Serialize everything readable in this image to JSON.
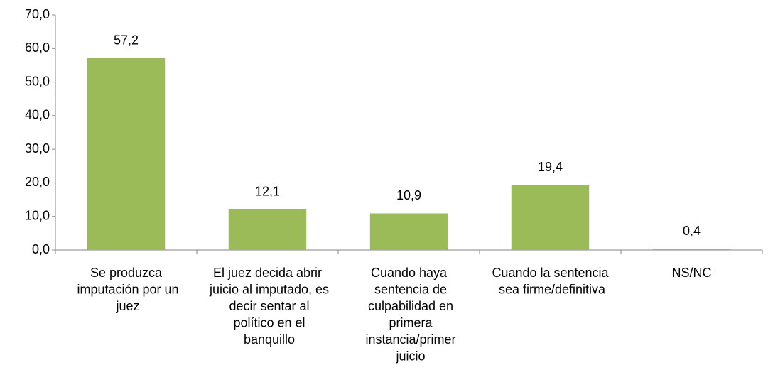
{
  "chart_data": {
    "type": "bar",
    "categories": [
      "Se produzca imputación por un juez",
      "El juez decida abrir juicio al imputado, es decir sentar al político en el banquillo",
      "Cuando haya sentencia de culpabilidad en primera instancia/primer juicio",
      "Cuando la sentencia sea firme/definitiva",
      "NS/NC"
    ],
    "values": [
      57.2,
      12.1,
      10.9,
      19.4,
      0.4
    ],
    "value_labels": [
      "57,2",
      "12,1",
      "10,9",
      "19,4",
      "0,4"
    ],
    "color": "#9bbb59",
    "ylim": [
      0,
      70
    ],
    "yticks": [
      {
        "value": 0,
        "label": "0,0"
      },
      {
        "value": 10,
        "label": "10,0"
      },
      {
        "value": 20,
        "label": "20,0"
      },
      {
        "value": 30,
        "label": "30,0"
      },
      {
        "value": 40,
        "label": "40,0"
      },
      {
        "value": 50,
        "label": "50,0"
      },
      {
        "value": 60,
        "label": "60,0"
      },
      {
        "value": 70,
        "label": "70,0"
      }
    ],
    "grid": false
  }
}
